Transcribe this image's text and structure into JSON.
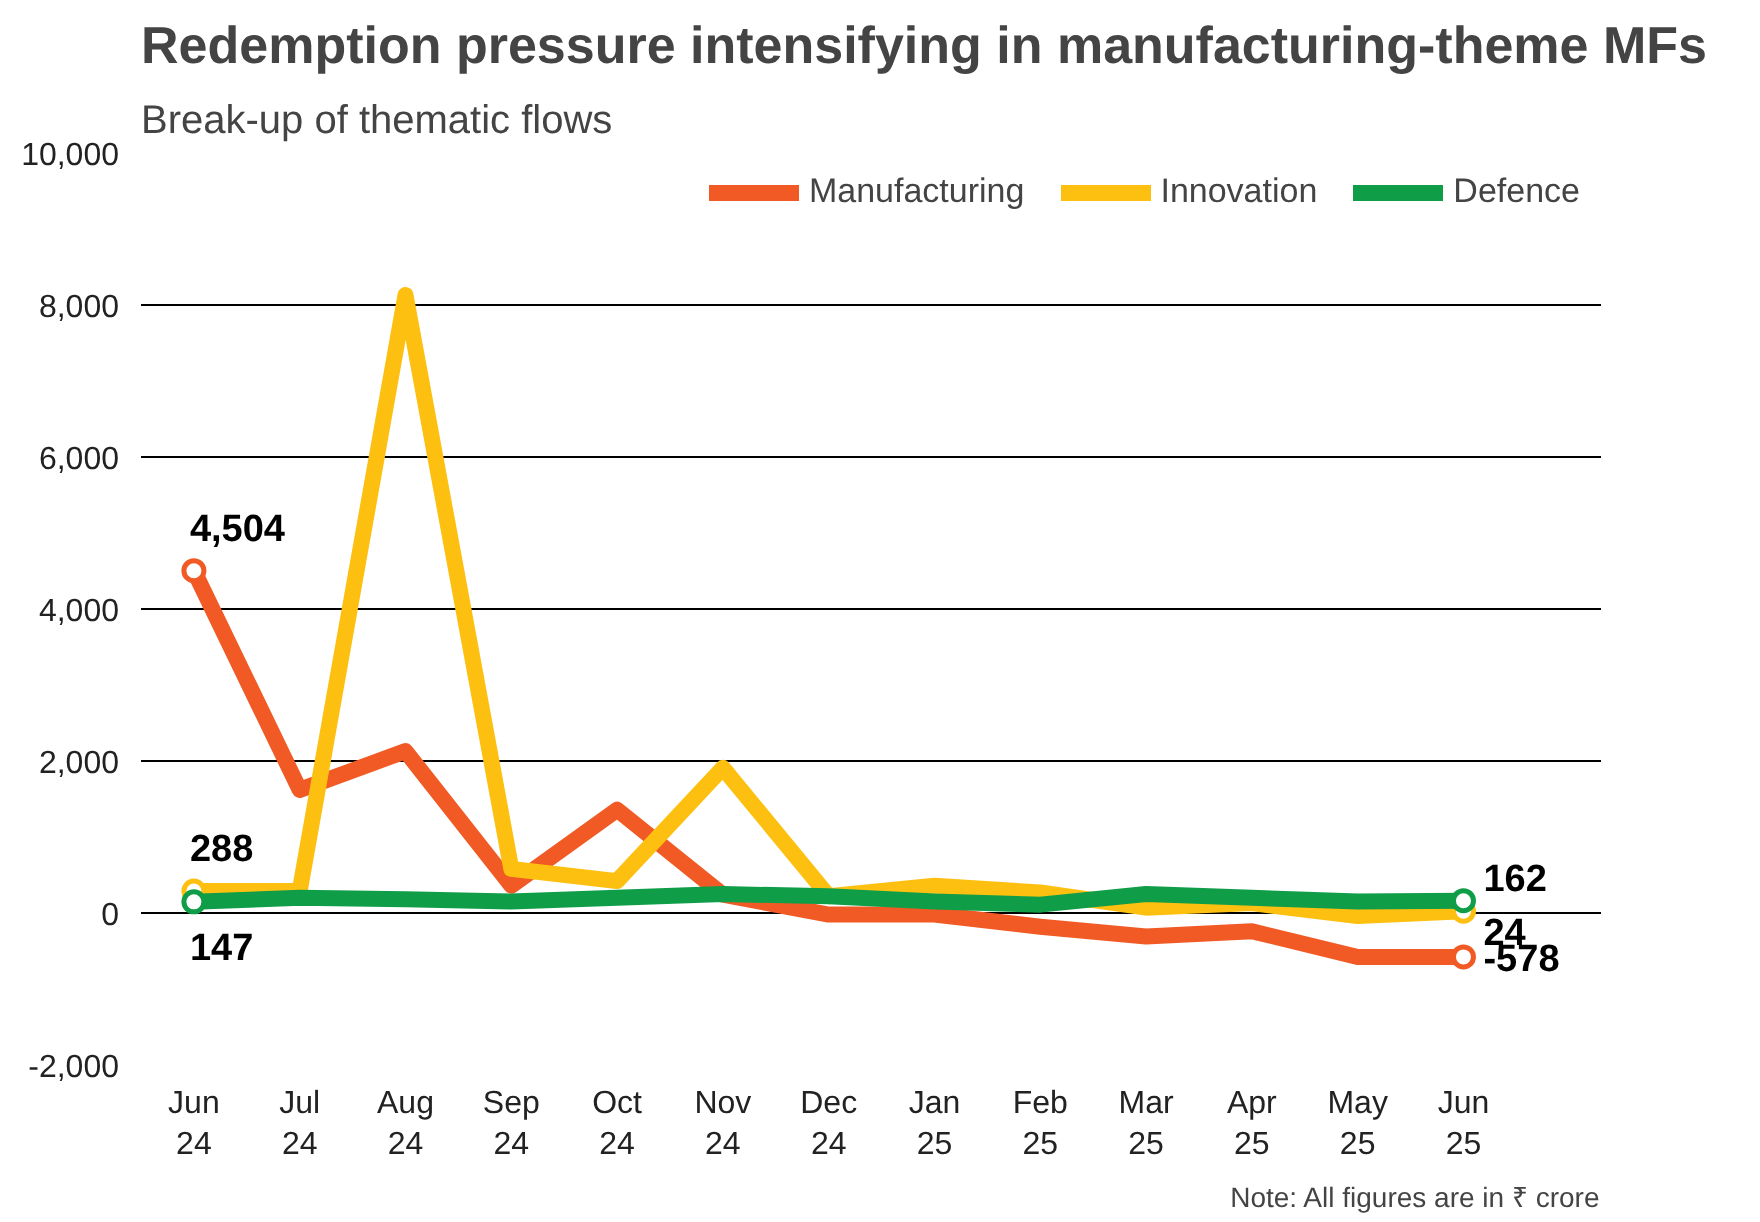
{
  "chart_data": {
    "type": "line",
    "title": "Redemption pressure intensifying in manufacturing-theme MFs",
    "subtitle": "Break-up of thematic flows",
    "categories": [
      "Jun\n24",
      "Jul\n24",
      "Aug\n24",
      "Sep\n24",
      "Oct\n24",
      "Nov\n24",
      "Dec\n24",
      "Jan\n25",
      "Feb\n25",
      "Mar\n25",
      "Apr\n25",
      "May\n25",
      "Jun\n25"
    ],
    "series": [
      {
        "name": "Manufacturing",
        "color": "#f15a24",
        "values": [
          4504,
          1620,
          2130,
          360,
          1360,
          240,
          -20,
          -20,
          -180,
          -310,
          -240,
          -578,
          -578
        ],
        "value_labels": [
          "4,504",
          null,
          null,
          null,
          null,
          null,
          null,
          null,
          null,
          null,
          null,
          null,
          "-578"
        ]
      },
      {
        "name": "Innovation",
        "color": "#fdc010",
        "values": [
          288,
          290,
          8130,
          580,
          420,
          1910,
          220,
          360,
          270,
          70,
          130,
          -40,
          24
        ],
        "value_labels": [
          "288",
          null,
          null,
          null,
          null,
          null,
          null,
          null,
          null,
          null,
          null,
          null,
          "24"
        ]
      },
      {
        "name": "Defence",
        "color": "#0f9d48",
        "values": [
          147,
          200,
          180,
          150,
          200,
          250,
          220,
          150,
          110,
          250,
          200,
          150,
          162
        ],
        "value_labels": [
          "147",
          null,
          null,
          null,
          null,
          null,
          null,
          null,
          null,
          null,
          null,
          null,
          "162"
        ]
      }
    ],
    "ylim": [
      -2000,
      10000
    ],
    "yticks": [
      {
        "value": -2000,
        "label": "-2,000"
      },
      0,
      {
        "value": 2000,
        "label": "2,000"
      },
      {
        "value": 4000,
        "label": "4,000"
      },
      {
        "value": 6000,
        "label": "6,000"
      },
      {
        "value": 8000,
        "label": "8,000"
      },
      {
        "value": 10000,
        "label": "10,000"
      }
    ],
    "grid": "y",
    "legend": "top right",
    "annotations": [
      "Note: All figures are in ₹ crore"
    ]
  }
}
